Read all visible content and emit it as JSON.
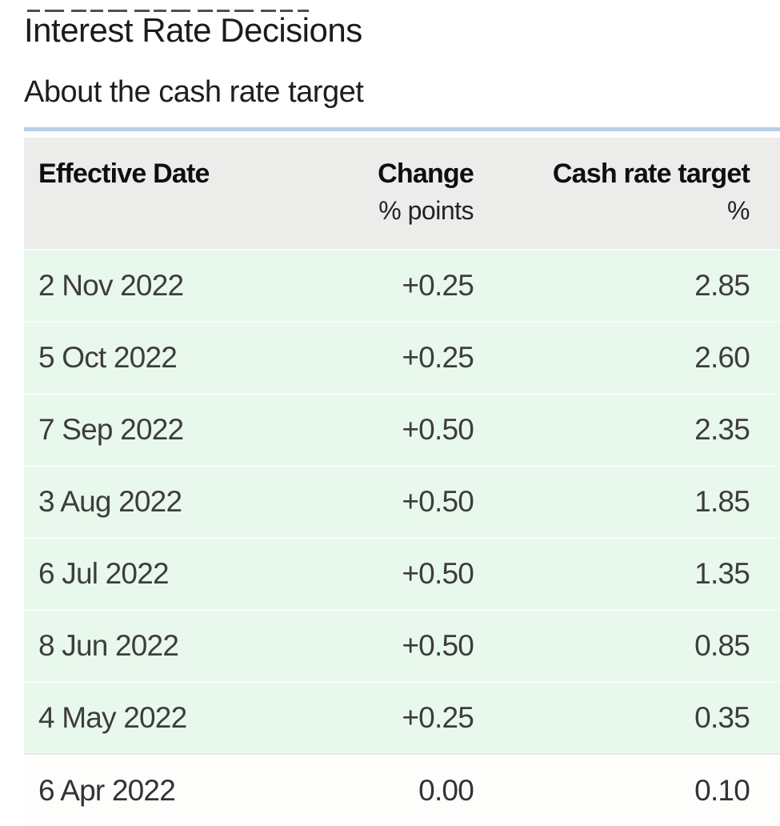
{
  "page": {
    "title": "Interest Rate Decisions",
    "subtitle": "About the cash rate target"
  },
  "table": {
    "columns": [
      {
        "label": "Effective Date",
        "sublabel": ""
      },
      {
        "label": "Change",
        "sublabel": "% points"
      },
      {
        "label": "Cash rate target",
        "sublabel": "%"
      }
    ],
    "rows": [
      {
        "date": "2 Nov 2022",
        "change": "+0.25",
        "target": "2.85",
        "highlighted": true
      },
      {
        "date": "5 Oct 2022",
        "change": "+0.25",
        "target": "2.60",
        "highlighted": true
      },
      {
        "date": "7 Sep 2022",
        "change": "+0.50",
        "target": "2.35",
        "highlighted": true
      },
      {
        "date": "3 Aug 2022",
        "change": "+0.50",
        "target": "1.85",
        "highlighted": true
      },
      {
        "date": "6 Jul 2022",
        "change": "+0.50",
        "target": "1.35",
        "highlighted": true
      },
      {
        "date": "8 Jun 2022",
        "change": "+0.50",
        "target": "0.85",
        "highlighted": true
      },
      {
        "date": "4 May 2022",
        "change": "+0.25",
        "target": "0.35",
        "highlighted": true
      },
      {
        "date": "6 Apr 2022",
        "change": "0.00",
        "target": "0.10",
        "highlighted": false
      }
    ]
  },
  "colors": {
    "accent_bar": "#b7cfe9",
    "header_bg": "#ececea",
    "row_highlight_bg": "#e9f8ec",
    "row_plain_bg": "#fdfdfb",
    "row_divider": "#f6fbf6",
    "row_plain_divider": "#e7e9e4"
  }
}
